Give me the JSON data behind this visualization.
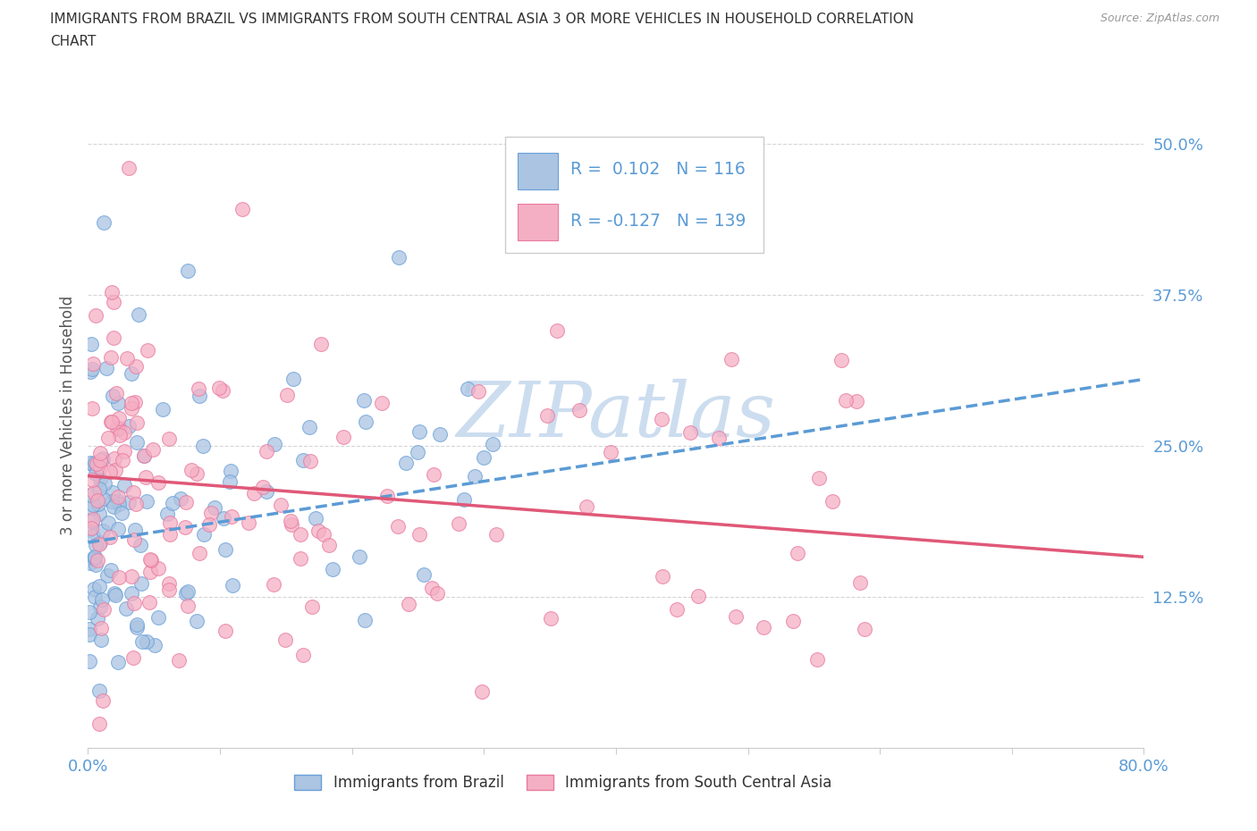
{
  "title_line1": "IMMIGRANTS FROM BRAZIL VS IMMIGRANTS FROM SOUTH CENTRAL ASIA 3 OR MORE VEHICLES IN HOUSEHOLD CORRELATION",
  "title_line2": "CHART",
  "source": "Source: ZipAtlas.com",
  "ylabel": "3 or more Vehicles in Household",
  "xlim": [
    0.0,
    0.8
  ],
  "ylim": [
    0.0,
    0.55
  ],
  "xticks": [
    0.0,
    0.1,
    0.2,
    0.3,
    0.4,
    0.5,
    0.6,
    0.7,
    0.8
  ],
  "xticklabels": [
    "0.0%",
    "",
    "",
    "",
    "",
    "",
    "",
    "",
    "80.0%"
  ],
  "yticks": [
    0.0,
    0.125,
    0.25,
    0.375,
    0.5
  ],
  "yticklabels": [
    "",
    "12.5%",
    "25.0%",
    "37.5%",
    "50.0%"
  ],
  "brazil_color": "#aac4e2",
  "brazil_edge_color": "#6aa0d8",
  "brazil_line_color": "#5b9bd5",
  "sca_color": "#f5afc4",
  "sca_edge_color": "#e87aa0",
  "sca_line_color": "#e05878",
  "watermark_color": "#ccddef",
  "tick_color": "#5b9bd5",
  "R_brazil": 0.102,
  "N_brazil": 116,
  "R_sca": -0.127,
  "N_sca": 139,
  "brazil_line_x0": 0.0,
  "brazil_line_y0": 0.17,
  "brazil_line_x1": 0.8,
  "brazil_line_y1": 0.305,
  "sca_line_x0": 0.0,
  "sca_line_y0": 0.225,
  "sca_line_x1": 0.8,
  "sca_line_y1": 0.158
}
